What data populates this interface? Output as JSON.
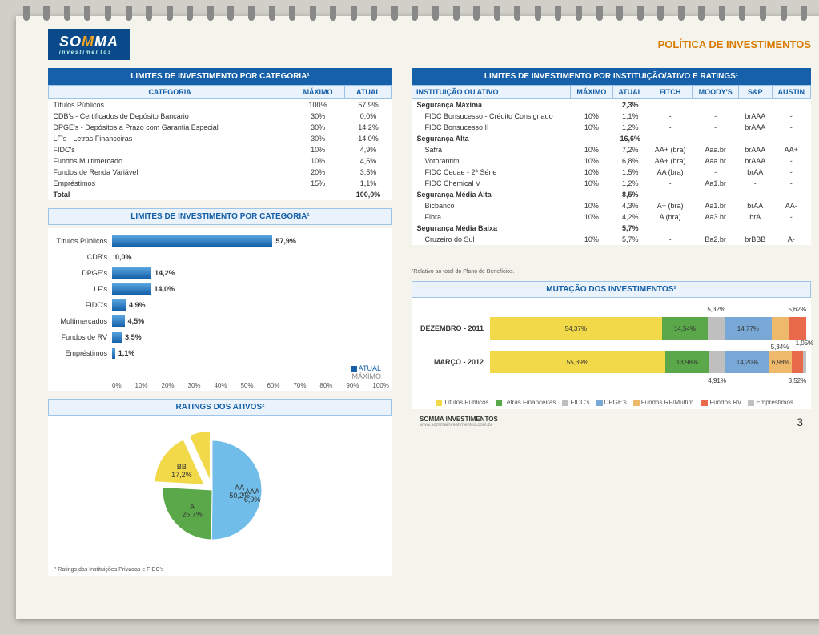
{
  "header": {
    "logo_pre": "SO",
    "logo_mid": "M",
    "logo_post": "MA",
    "logo_sub": "investimentos",
    "title": "POLÍTICA DE INVESTIMENTOS"
  },
  "table_categoria": {
    "title": "LIMITES DE INVESTIMENTO POR CATEGORIA¹",
    "cols": [
      "CATEGORIA",
      "MÁXIMO",
      "ATUAL"
    ],
    "rows": [
      [
        "Títulos Públicos",
        "100%",
        "57,9%"
      ],
      [
        "CDB's - Certificados de Depósito Bancário",
        "30%",
        "0,0%"
      ],
      [
        "DPGE's - Depósitos a Prazo com Garantia Especial",
        "30%",
        "14,2%"
      ],
      [
        "LF's - Letras Financeiras",
        "30%",
        "14,0%"
      ],
      [
        "FIDC's",
        "10%",
        "4,9%"
      ],
      [
        "Fundos Multimercado",
        "10%",
        "4,5%"
      ],
      [
        "Fundos de Renda Variável",
        "20%",
        "3,5%"
      ],
      [
        "Empréstimos",
        "15%",
        "1,1%"
      ]
    ],
    "total": [
      "Total",
      "",
      "100,0%"
    ]
  },
  "barchart": {
    "title": "LIMITES DE INVESTIMENTO POR CATEGORIA¹",
    "bar_color": "#1560a8",
    "legend": {
      "atual": "ATUAL",
      "maximo": "MÁXIMO",
      "atual_color": "#1560a8"
    },
    "axis": [
      "0%",
      "10%",
      "20%",
      "30%",
      "40%",
      "50%",
      "60%",
      "70%",
      "80%",
      "90%",
      "100%"
    ],
    "items": [
      {
        "label": "Títulos Públicos",
        "val": "57,9%",
        "pct": 57.9
      },
      {
        "label": "CDB's",
        "val": "0,0%",
        "pct": 0.0
      },
      {
        "label": "DPGE's",
        "val": "14,2%",
        "pct": 14.2
      },
      {
        "label": "LF's",
        "val": "14,0%",
        "pct": 14.0
      },
      {
        "label": "FIDC's",
        "val": "4,9%",
        "pct": 4.9
      },
      {
        "label": "Multimercados",
        "val": "4,5%",
        "pct": 4.5
      },
      {
        "label": "Fundos de RV",
        "val": "3,5%",
        "pct": 3.5
      },
      {
        "label": "Empréstimos",
        "val": "1,1%",
        "pct": 1.1
      }
    ]
  },
  "pie": {
    "title": "RATINGS DOS ATIVOS²",
    "footnote": "² Ratings das Instituições Privadas e FIDC's",
    "slices": [
      {
        "label": "AA",
        "value": 50.2,
        "text": "AA\n50,2%",
        "color": "#6fbde8"
      },
      {
        "label": "A",
        "value": 25.7,
        "text": "A\n25,7%",
        "color": "#5aa84a"
      },
      {
        "label": "BB",
        "value": 17.2,
        "text": "BB\n17,2%",
        "color": "#f2d94a"
      },
      {
        "label": "AAA",
        "value": 6.9,
        "text": "AAA\n6,9%",
        "color": "#f2d94a"
      }
    ]
  },
  "table_inst": {
    "title": "LIMITES DE INVESTIMENTO POR INSTITUIÇÃO/ATIVO E RATINGS¹",
    "cols": [
      "INSTITUIÇÃO OU ATIVO",
      "MÁXIMO",
      "ATUAL",
      "FITCH",
      "MOODY'S",
      "S&P",
      "AUSTIN"
    ],
    "rows": [
      {
        "b": 1,
        "c": [
          "Segurança Máxima",
          "",
          "2,3%",
          "",
          "",
          "",
          ""
        ]
      },
      {
        "b": 0,
        "c": [
          "FIDC Bonsucesso - Crédito Consignado",
          "10%",
          "1,1%",
          "-",
          "-",
          "brAAA",
          "-"
        ]
      },
      {
        "b": 0,
        "c": [
          "FIDC Bonsucesso II",
          "10%",
          "1,2%",
          "-",
          "-",
          "brAAA",
          "-"
        ]
      },
      {
        "b": 1,
        "c": [
          "Segurança Alta",
          "",
          "16,6%",
          "",
          "",
          "",
          ""
        ]
      },
      {
        "b": 0,
        "c": [
          "Safra",
          "10%",
          "7,2%",
          "AA+ (bra)",
          "Aaa.br",
          "brAAA",
          "AA+"
        ]
      },
      {
        "b": 0,
        "c": [
          "Votorantim",
          "10%",
          "6,8%",
          "AA+ (bra)",
          "Aaa.br",
          "brAAA",
          "-"
        ]
      },
      {
        "b": 0,
        "c": [
          "FIDC Cedae - 2ª Série",
          "10%",
          "1,5%",
          "AA (bra)",
          "-",
          "brAA",
          "-"
        ]
      },
      {
        "b": 0,
        "c": [
          "FIDC Chemical V",
          "10%",
          "1,2%",
          "-",
          "Aa1.br",
          "-",
          "-"
        ]
      },
      {
        "b": 1,
        "c": [
          "Segurança Média Alta",
          "",
          "8,5%",
          "",
          "",
          "",
          ""
        ]
      },
      {
        "b": 0,
        "c": [
          "Bicbanco",
          "10%",
          "4,3%",
          "A+ (bra)",
          "Aa1.br",
          "brAA",
          "AA-"
        ]
      },
      {
        "b": 0,
        "c": [
          "Fibra",
          "10%",
          "4,2%",
          "A (bra)",
          "Aa3.br",
          "brA",
          "-"
        ]
      },
      {
        "b": 1,
        "c": [
          "Segurança Média Baixa",
          "",
          "5,7%",
          "",
          "",
          "",
          ""
        ]
      },
      {
        "b": 0,
        "c": [
          "Cruzeiro do Sul",
          "10%",
          "5,7%",
          "-",
          "Ba2.br",
          "brBBB",
          "A-"
        ]
      }
    ],
    "footnote": "¹Relativo ao total do Plano de Benefícios."
  },
  "stacked": {
    "title": "MUTAÇÃO DOS INVESTIMENTOS¹",
    "colors": {
      "tp": "#f2d94a",
      "lf": "#5aa84a",
      "fidc": "#bfbfbf",
      "dpge": "#7aa8d6",
      "rf": "#efb96b",
      "rv": "#e86a4a",
      "emp": "#c0c0c0"
    },
    "rows": [
      {
        "label": "DEZEMBRO - 2011",
        "segs": [
          {
            "k": "tp",
            "v": 54.37,
            "t": "54,37%"
          },
          {
            "k": "lf",
            "v": 14.54,
            "t": "14,54%"
          },
          {
            "k": "fidc",
            "v": 5.32,
            "t": "5,32%",
            "pos": "top"
          },
          {
            "k": "dpge",
            "v": 14.77,
            "t": "14,77%"
          },
          {
            "k": "rf",
            "v": 5.34,
            "t": "5,34%",
            "pos": "bot"
          },
          {
            "k": "rv",
            "v": 5.62,
            "t": "5,62%",
            "pos": "top"
          }
        ]
      },
      {
        "label": "MARÇO - 2012",
        "segs": [
          {
            "k": "tp",
            "v": 55.39,
            "t": "55,39%"
          },
          {
            "k": "lf",
            "v": 13.98,
            "t": "13,98%"
          },
          {
            "k": "fidc",
            "v": 4.91,
            "t": "4,91%",
            "pos": "bot"
          },
          {
            "k": "dpge",
            "v": 14.2,
            "t": "14,20%"
          },
          {
            "k": "rf",
            "v": 6.98,
            "t": "6,98%"
          },
          {
            "k": "rv",
            "v": 3.52,
            "t": "3,52%",
            "pos": "bot"
          },
          {
            "k": "emp",
            "v": 1.05,
            "t": "1,05%",
            "pos": "top"
          }
        ]
      }
    ],
    "legend": [
      {
        "k": "tp",
        "t": "Títulos Públicos"
      },
      {
        "k": "lf",
        "t": "Letras Financeiras"
      },
      {
        "k": "fidc",
        "t": "FIDC's"
      },
      {
        "k": "dpge",
        "t": "DPGE's"
      },
      {
        "k": "rf",
        "t": "Fundos RF/Multim."
      },
      {
        "k": "rv",
        "t": "Fundos RV"
      },
      {
        "k": "emp",
        "t": "Empréstimos"
      }
    ]
  },
  "footer": {
    "left1": "SOMMA INVESTIMENTOS",
    "left2": "www.sommainvestimentos.com.br",
    "page": "3"
  }
}
